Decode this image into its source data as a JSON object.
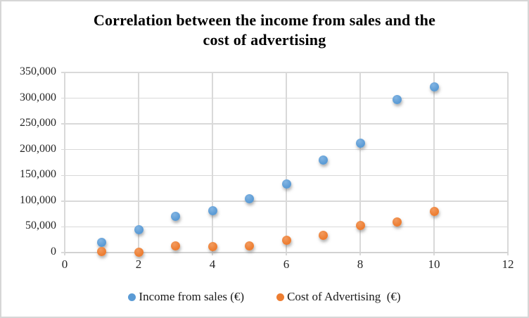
{
  "window": {
    "background": "#ffffff",
    "border_color": "#d6d6d6"
  },
  "chart_data": {
    "type": "scatter",
    "title": "Correlation between the income from sales and the cost of advertising",
    "title_lines": [
      "Correlation between the income from sales and the",
      "cost of advertising"
    ],
    "x": [
      1,
      2,
      3,
      4,
      5,
      6,
      7,
      8,
      9,
      10
    ],
    "series": [
      {
        "name": "Income from sales (€)",
        "color": "#5b9bd5",
        "color_light": "#82b4e2",
        "values": [
          20000,
          45000,
          70000,
          81000,
          105000,
          133000,
          180000,
          213000,
          298000,
          322000
        ]
      },
      {
        "name": "Cost of Advertising  (€)",
        "color": "#ed7d31",
        "color_light": "#f29b5f",
        "values": [
          2000,
          1000,
          13000,
          12000,
          13000,
          24000,
          33000,
          53000,
          60000,
          80000
        ]
      }
    ],
    "xlim": [
      0,
      12
    ],
    "xtick_step": 2,
    "x_tick_labels": [
      "0",
      "2",
      "4",
      "6",
      "8",
      "10",
      "12"
    ],
    "ylim": [
      0,
      350000
    ],
    "ytick_step": 50000,
    "y_tick_labels": [
      "0",
      "50,000",
      "100,000",
      "150,000",
      "200,000",
      "250,000",
      "300,000",
      "350,000"
    ],
    "grid": true,
    "gridline_color": "#d9d9d9",
    "legend_position": "bottom"
  }
}
